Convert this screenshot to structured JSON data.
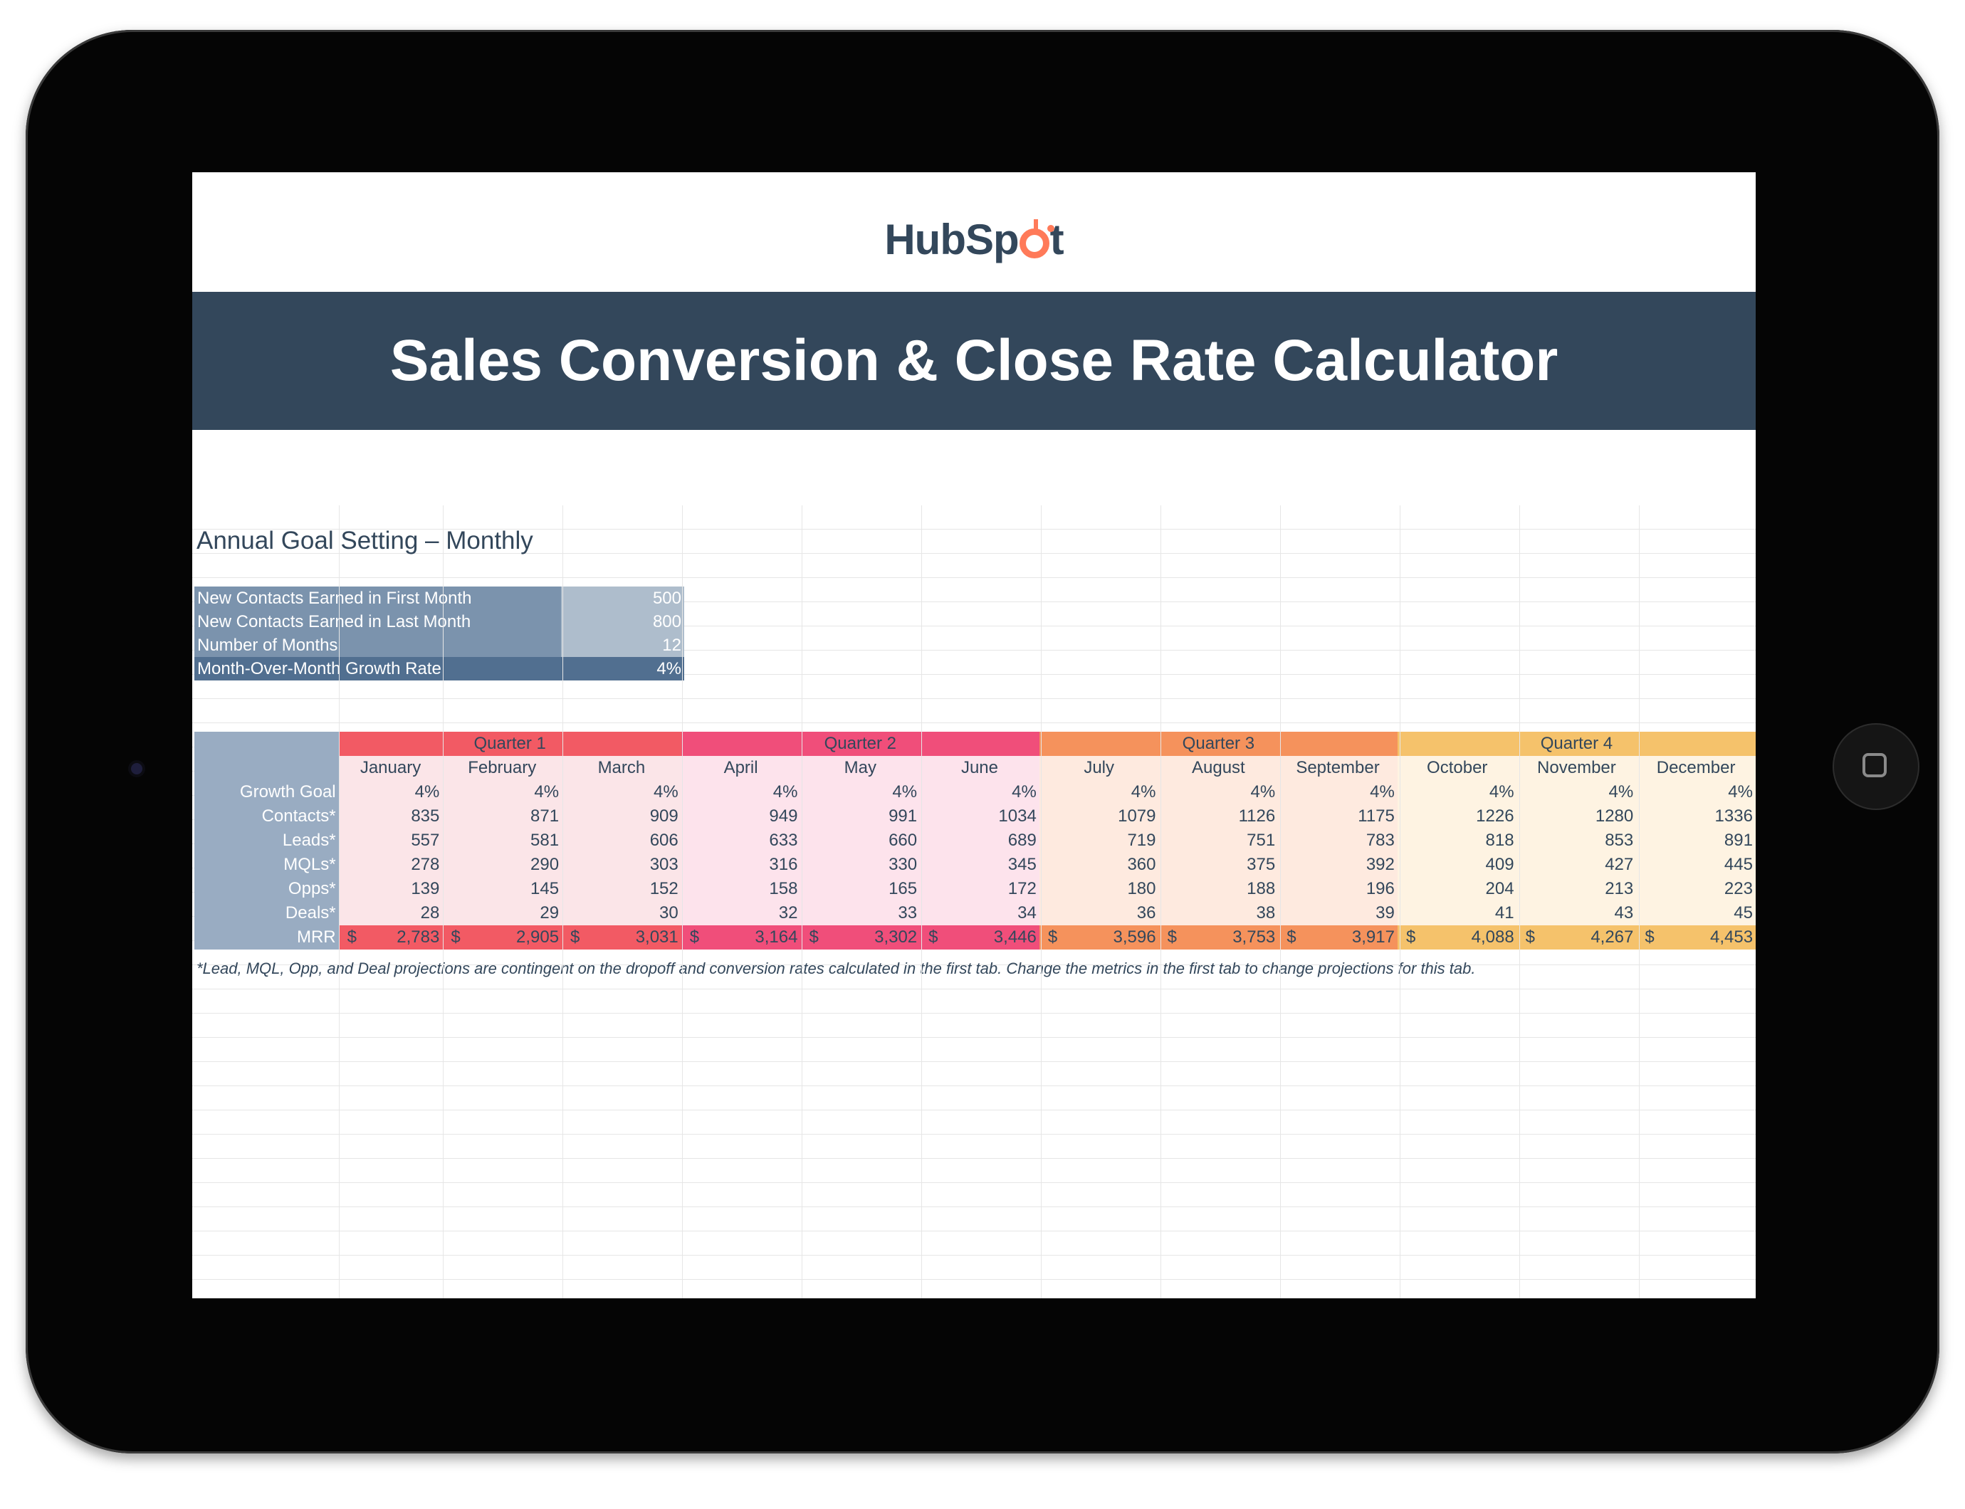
{
  "logo": {
    "text_before": "HubSp",
    "text_after": "t"
  },
  "banner": {
    "title": "Sales Conversion & Close Rate Calculator"
  },
  "sheet": {
    "title": "Annual Goal Setting – Monthly",
    "inputs": [
      {
        "label": "New Contacts Earned in First Month",
        "value": "500"
      },
      {
        "label": "New Contacts Earned in Last Month",
        "value": "800"
      },
      {
        "label": "Number of Months",
        "value": "12"
      },
      {
        "label": "Month-Over-Month Growth Rate",
        "value": "4%"
      }
    ],
    "quarters": [
      "Quarter 1",
      "Quarter 2",
      "Quarter 3",
      "Quarter 4"
    ],
    "months": [
      "January",
      "February",
      "March",
      "April",
      "May",
      "June",
      "July",
      "August",
      "September",
      "October",
      "November",
      "December"
    ],
    "row_labels": [
      "Growth Goal",
      "Contacts*",
      "Leads*",
      "MQLs*",
      "Opps*",
      "Deals*",
      "MRR"
    ],
    "growth_goal": [
      "4%",
      "4%",
      "4%",
      "4%",
      "4%",
      "4%",
      "4%",
      "4%",
      "4%",
      "4%",
      "4%",
      "4%"
    ],
    "contacts": [
      "835",
      "871",
      "909",
      "949",
      "991",
      "1034",
      "1079",
      "1126",
      "1175",
      "1226",
      "1280",
      "1336"
    ],
    "leads": [
      "557",
      "581",
      "606",
      "633",
      "660",
      "689",
      "719",
      "751",
      "783",
      "818",
      "853",
      "891"
    ],
    "mqls": [
      "278",
      "290",
      "303",
      "316",
      "330",
      "345",
      "360",
      "375",
      "392",
      "409",
      "427",
      "445"
    ],
    "opps": [
      "139",
      "145",
      "152",
      "158",
      "165",
      "172",
      "180",
      "188",
      "196",
      "204",
      "213",
      "223"
    ],
    "deals": [
      "28",
      "29",
      "30",
      "32",
      "33",
      "34",
      "36",
      "38",
      "39",
      "41",
      "43",
      "45"
    ],
    "currency_symbol": "$",
    "mrr": [
      "2,783",
      "2,905",
      "3,031",
      "3,164",
      "3,302",
      "3,446",
      "3,596",
      "3,753",
      "3,917",
      "4,088",
      "4,267",
      "4,453"
    ],
    "footnote": "*Lead, MQL, Opp, and Deal projections are contingent on the dropoff and conversion rates calculated in the first tab. Change the metrics in the first tab to change projections for this tab."
  }
}
